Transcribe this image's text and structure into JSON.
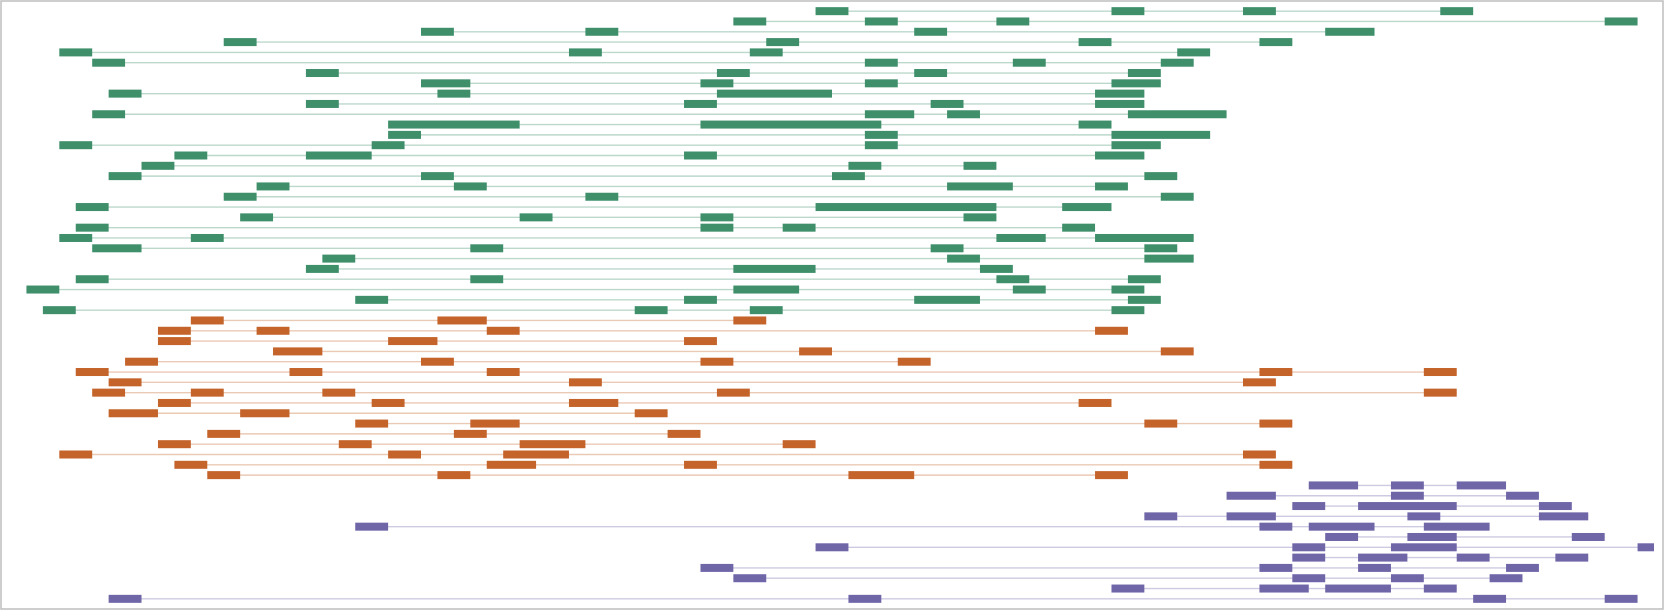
{
  "chart_data": {
    "type": "gantt",
    "title": "",
    "xlabel": "",
    "ylabel": "",
    "grid": false,
    "legend": "none",
    "xlim": [
      0,
      100
    ],
    "ylim": [
      0,
      100
    ],
    "colors": {
      "green": "#3f8f6b",
      "orange": "#c4632a",
      "purple": "#6f66a8",
      "frame": "#bdbdbd"
    },
    "series": [
      {
        "color": "green",
        "rows": [
          [
            [
              49,
              51
            ],
            [
              67,
              69
            ],
            [
              75,
              77
            ],
            [
              87,
              89
            ]
          ],
          [
            [
              44,
              46
            ],
            [
              52,
              54
            ],
            [
              60,
              62
            ],
            [
              97,
              99
            ]
          ],
          [
            [
              25,
              27
            ],
            [
              35,
              37
            ],
            [
              55,
              57
            ],
            [
              80,
              83
            ]
          ],
          [
            [
              13,
              15
            ],
            [
              46,
              48
            ],
            [
              65,
              67
            ],
            [
              76,
              78
            ]
          ],
          [
            [
              3,
              5
            ],
            [
              34,
              36
            ],
            [
              45,
              47
            ],
            [
              71,
              73
            ]
          ],
          [
            [
              5,
              7
            ],
            [
              52,
              54
            ],
            [
              61,
              63
            ],
            [
              70,
              72
            ]
          ],
          [
            [
              18,
              20
            ],
            [
              43,
              45
            ],
            [
              55,
              57
            ],
            [
              68,
              70
            ]
          ],
          [
            [
              25,
              28
            ],
            [
              42,
              44
            ],
            [
              52,
              54
            ],
            [
              67,
              70
            ]
          ],
          [
            [
              6,
              8
            ],
            [
              26,
              28
            ],
            [
              43,
              50
            ],
            [
              66,
              69
            ]
          ],
          [
            [
              18,
              20
            ],
            [
              41,
              43
            ],
            [
              56,
              58
            ],
            [
              66,
              69
            ]
          ],
          [
            [
              5,
              7
            ],
            [
              52,
              55
            ],
            [
              57,
              59
            ],
            [
              68,
              74
            ]
          ],
          [
            [
              23,
              31
            ],
            [
              42,
              53
            ],
            [
              65,
              67
            ]
          ],
          [
            [
              23,
              25
            ],
            [
              52,
              54
            ],
            [
              67,
              73
            ]
          ],
          [
            [
              3,
              5
            ],
            [
              22,
              24
            ],
            [
              52,
              54
            ],
            [
              67,
              70
            ]
          ],
          [
            [
              10,
              12
            ],
            [
              18,
              22
            ],
            [
              41,
              43
            ],
            [
              66,
              69
            ]
          ],
          [
            [
              8,
              10
            ],
            [
              51,
              53
            ],
            [
              58,
              60
            ]
          ],
          [
            [
              6,
              8
            ],
            [
              25,
              27
            ],
            [
              50,
              52
            ],
            [
              69,
              71
            ]
          ],
          [
            [
              15,
              17
            ],
            [
              27,
              29
            ],
            [
              57,
              61
            ],
            [
              66,
              68
            ]
          ],
          [
            [
              13,
              15
            ],
            [
              35,
              37
            ],
            [
              70,
              72
            ]
          ],
          [
            [
              4,
              6
            ],
            [
              49,
              60
            ],
            [
              64,
              67
            ]
          ],
          [
            [
              14,
              16
            ],
            [
              31,
              33
            ],
            [
              42,
              44
            ],
            [
              58,
              60
            ]
          ],
          [
            [
              4,
              6
            ],
            [
              42,
              44
            ],
            [
              47,
              49
            ],
            [
              64,
              66
            ]
          ],
          [
            [
              3,
              5
            ],
            [
              11,
              13
            ],
            [
              60,
              63
            ],
            [
              66,
              72
            ]
          ],
          [
            [
              5,
              8
            ],
            [
              28,
              30
            ],
            [
              56,
              58
            ],
            [
              69,
              71
            ]
          ],
          [
            [
              19,
              21
            ],
            [
              57,
              59
            ],
            [
              69,
              72
            ]
          ],
          [
            [
              18,
              20
            ],
            [
              44,
              49
            ],
            [
              59,
              61
            ]
          ],
          [
            [
              4,
              6
            ],
            [
              28,
              30
            ],
            [
              60,
              62
            ],
            [
              68,
              70
            ]
          ],
          [
            [
              1,
              3
            ],
            [
              44,
              48
            ],
            [
              61,
              63
            ],
            [
              67,
              69
            ]
          ],
          [
            [
              21,
              23
            ],
            [
              41,
              43
            ],
            [
              55,
              59
            ],
            [
              68,
              70
            ]
          ],
          [
            [
              2,
              4
            ],
            [
              38,
              40
            ],
            [
              45,
              47
            ],
            [
              67,
              69
            ]
          ]
        ]
      },
      {
        "color": "orange",
        "rows": [
          [
            [
              11,
              13
            ],
            [
              26,
              29
            ],
            [
              44,
              46
            ]
          ],
          [
            [
              9,
              11
            ],
            [
              15,
              17
            ],
            [
              29,
              31
            ],
            [
              66,
              68
            ]
          ],
          [
            [
              9,
              11
            ],
            [
              23,
              26
            ],
            [
              41,
              43
            ]
          ],
          [
            [
              16,
              19
            ],
            [
              48,
              50
            ],
            [
              70,
              72
            ]
          ],
          [
            [
              7,
              9
            ],
            [
              25,
              27
            ],
            [
              42,
              44
            ],
            [
              54,
              56
            ]
          ],
          [
            [
              4,
              6
            ],
            [
              17,
              19
            ],
            [
              29,
              31
            ],
            [
              76,
              78
            ],
            [
              86,
              88
            ]
          ],
          [
            [
              6,
              8
            ],
            [
              34,
              36
            ],
            [
              75,
              77
            ]
          ],
          [
            [
              5,
              7
            ],
            [
              11,
              13
            ],
            [
              19,
              21
            ],
            [
              43,
              45
            ],
            [
              86,
              88
            ]
          ],
          [
            [
              9,
              11
            ],
            [
              22,
              24
            ],
            [
              34,
              37
            ],
            [
              65,
              67
            ]
          ],
          [
            [
              6,
              9
            ],
            [
              14,
              17
            ],
            [
              38,
              40
            ]
          ],
          [
            [
              21,
              23
            ],
            [
              28,
              31
            ],
            [
              69,
              71
            ],
            [
              76,
              78
            ]
          ],
          [
            [
              12,
              14
            ],
            [
              27,
              29
            ],
            [
              40,
              42
            ]
          ],
          [
            [
              9,
              11
            ],
            [
              20,
              22
            ],
            [
              31,
              35
            ],
            [
              47,
              49
            ]
          ],
          [
            [
              3,
              5
            ],
            [
              23,
              25
            ],
            [
              30,
              34
            ],
            [
              75,
              77
            ]
          ],
          [
            [
              10,
              12
            ],
            [
              29,
              32
            ],
            [
              41,
              43
            ],
            [
              76,
              78
            ]
          ],
          [
            [
              12,
              14
            ],
            [
              26,
              28
            ],
            [
              51,
              55
            ],
            [
              66,
              68
            ]
          ]
        ]
      },
      {
        "color": "purple",
        "rows": [
          [
            [
              79,
              82
            ],
            [
              84,
              86
            ],
            [
              88,
              91
            ]
          ],
          [
            [
              74,
              77
            ],
            [
              84,
              86
            ],
            [
              91,
              93
            ]
          ],
          [
            [
              78,
              80
            ],
            [
              82,
              88
            ],
            [
              93,
              95
            ]
          ],
          [
            [
              69,
              71
            ],
            [
              74,
              77
            ],
            [
              85,
              87
            ],
            [
              93,
              96
            ]
          ],
          [
            [
              21,
              23
            ],
            [
              76,
              78
            ],
            [
              79,
              83
            ],
            [
              86,
              90
            ]
          ],
          [
            [
              80,
              82
            ],
            [
              85,
              88
            ],
            [
              95,
              97
            ]
          ],
          [
            [
              49,
              51
            ],
            [
              78,
              80
            ],
            [
              84,
              88
            ],
            [
              99,
              100
            ]
          ],
          [
            [
              78,
              80
            ],
            [
              82,
              85
            ],
            [
              88,
              90
            ],
            [
              94,
              96
            ]
          ],
          [
            [
              42,
              44
            ],
            [
              76,
              78
            ],
            [
              82,
              84
            ],
            [
              91,
              93
            ]
          ],
          [
            [
              44,
              46
            ],
            [
              78,
              80
            ],
            [
              84,
              86
            ],
            [
              90,
              92
            ]
          ],
          [
            [
              67,
              69
            ],
            [
              76,
              79
            ],
            [
              80,
              84
            ],
            [
              86,
              88
            ]
          ],
          [
            [
              6,
              8
            ],
            [
              51,
              53
            ],
            [
              89,
              91
            ],
            [
              97,
              99
            ]
          ]
        ]
      }
    ]
  }
}
